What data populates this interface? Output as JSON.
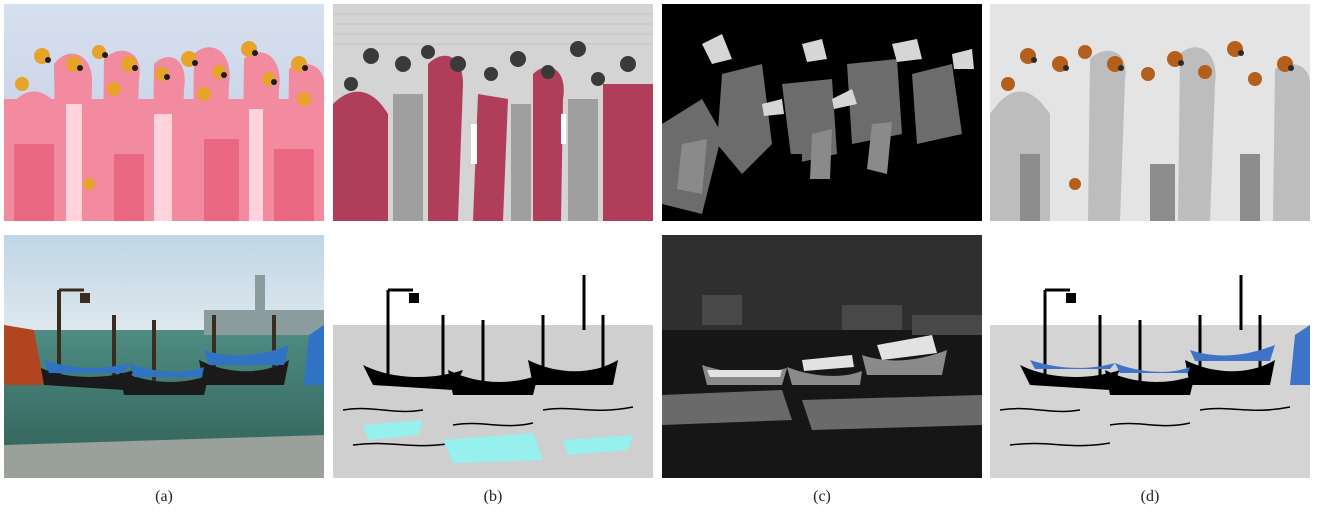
{
  "figure": {
    "columns": [
      {
        "label": "(a)"
      },
      {
        "label": "(b)"
      },
      {
        "label": "(c)"
      },
      {
        "label": "(d)"
      }
    ]
  },
  "colors": {
    "flamingo_pink": "#e8758d",
    "flamingo_beak": "#e7a32a",
    "dark_red": "#b03e5a",
    "cyan_highlight": "#96f0ee",
    "blue_highlight": "#3f73c8",
    "orange_highlight": "#b45f1b"
  }
}
